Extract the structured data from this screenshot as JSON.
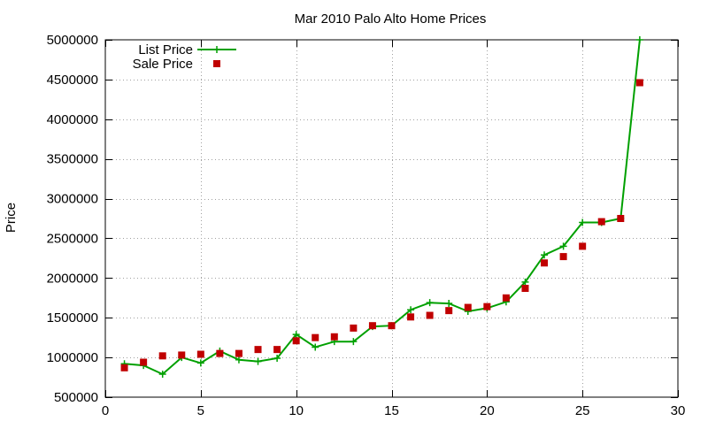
{
  "chart_data": {
    "type": "line",
    "title": "Mar 2010 Palo Alto Home Prices",
    "xlabel": "",
    "ylabel": "Price",
    "xlim": [
      0,
      30
    ],
    "ylim": [
      500000,
      5000000
    ],
    "xticks": [
      0,
      5,
      10,
      15,
      20,
      25,
      30
    ],
    "yticks": [
      500000,
      1000000,
      1500000,
      2000000,
      2500000,
      3000000,
      3500000,
      4000000,
      4500000,
      5000000
    ],
    "xtick_labels": [
      "0",
      "5",
      "10",
      "15",
      "20",
      "25",
      "30"
    ],
    "ytick_labels": [
      "500000",
      "1000000",
      "1500000",
      "2000000",
      "2500000",
      "3000000",
      "3500000",
      "4000000",
      "4500000",
      "5000000"
    ],
    "grid": true,
    "legend_position": "top-left",
    "series": [
      {
        "name": "List Price",
        "style": "line-with-plus",
        "color": "#00a000",
        "x": [
          1,
          2,
          3,
          4,
          5,
          6,
          7,
          8,
          9,
          10,
          11,
          12,
          13,
          14,
          15,
          16,
          17,
          18,
          19,
          20,
          21,
          22,
          23,
          24,
          25,
          26,
          27,
          28
        ],
        "values": [
          920000,
          900000,
          790000,
          1000000,
          930000,
          1080000,
          970000,
          950000,
          990000,
          1290000,
          1130000,
          1200000,
          1200000,
          1390000,
          1400000,
          1600000,
          1690000,
          1680000,
          1580000,
          1620000,
          1700000,
          1950000,
          2290000,
          2400000,
          2700000,
          2700000,
          2750000,
          5000000
        ]
      },
      {
        "name": "Sale Price",
        "style": "square-points",
        "color": "#c00000",
        "x": [
          1,
          2,
          3,
          4,
          5,
          6,
          7,
          8,
          9,
          10,
          11,
          12,
          13,
          14,
          15,
          16,
          17,
          18,
          19,
          20,
          21,
          22,
          23,
          24,
          25,
          26,
          27,
          28
        ],
        "values": [
          870000,
          940000,
          1020000,
          1030000,
          1040000,
          1050000,
          1050000,
          1100000,
          1100000,
          1210000,
          1250000,
          1260000,
          1370000,
          1400000,
          1400000,
          1510000,
          1530000,
          1590000,
          1630000,
          1640000,
          1750000,
          1870000,
          2190000,
          2270000,
          2400000,
          2710000,
          2750000,
          4460000
        ]
      }
    ]
  }
}
